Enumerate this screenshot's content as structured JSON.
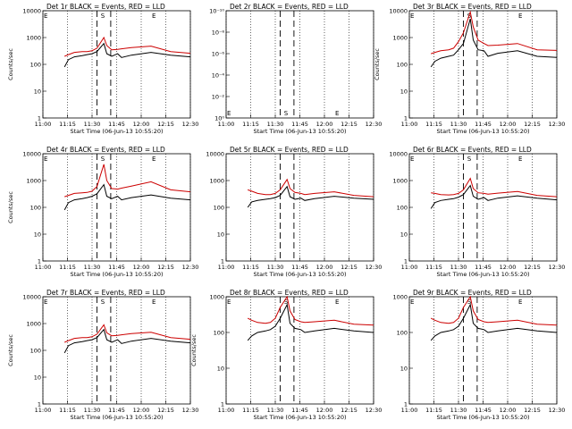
{
  "chart_data": [
    {
      "title": "Det 1r BLACK = Events, RED = LLD",
      "type": "line",
      "xlabel": "Start Time (06-Jun-13 10:55:20)",
      "ylabel": "Counts/sec",
      "ylim": [
        1,
        10000
      ],
      "yticks": [
        "1",
        "10",
        "100",
        "1000",
        "10000"
      ],
      "yscale": "log",
      "markers": [
        "E",
        "S",
        "E"
      ],
      "series": [
        {
          "name": "Events",
          "color": "#000000",
          "x": [
            11.22,
            11.26,
            11.32,
            11.4,
            11.45,
            11.5,
            11.55,
            11.62,
            11.65,
            11.7,
            11.76,
            11.8,
            11.9,
            12.1,
            12.3,
            12.5
          ],
          "y": [
            80,
            150,
            190,
            210,
            230,
            250,
            300,
            600,
            250,
            200,
            250,
            180,
            220,
            280,
            220,
            190
          ]
        },
        {
          "name": "LLD",
          "color": "#cc0000",
          "x": [
            11.22,
            11.26,
            11.32,
            11.4,
            11.45,
            11.5,
            11.55,
            11.62,
            11.65,
            11.7,
            11.76,
            11.8,
            11.9,
            12.1,
            12.3,
            12.5
          ],
          "y": [
            200,
            230,
            280,
            300,
            300,
            320,
            400,
            1000,
            500,
            350,
            360,
            380,
            420,
            480,
            300,
            260
          ]
        }
      ]
    },
    {
      "title": "Det 2r BLACK = Events, RED = LLD",
      "type": "line",
      "xlabel": "Start Time (06-Jun-13 10:55:20)",
      "ylabel": "",
      "ylim": [
        1,
        1e-10
      ],
      "yticks": [
        "10⁰",
        "10⁻²",
        "10⁻⁴",
        "10⁻⁶",
        "10⁻⁸",
        "10⁻¹⁰"
      ],
      "yscale": "log",
      "markers": [
        "E",
        "S",
        "E"
      ],
      "series": []
    },
    {
      "title": "Det 3r BLACK = Events, RED = LLD",
      "type": "line",
      "xlabel": "Start Time (06-Jun-13 10:55:20)",
      "ylabel": "Counts/sec",
      "ylim": [
        1,
        10000
      ],
      "yticks": [
        "1",
        "10",
        "100",
        "1000",
        "10000"
      ],
      "yscale": "log",
      "markers": [
        "E",
        "S",
        "E"
      ],
      "series": [
        {
          "name": "Events",
          "color": "#000000",
          "x": [
            11.22,
            11.26,
            11.32,
            11.4,
            11.45,
            11.5,
            11.55,
            11.62,
            11.65,
            11.7,
            11.76,
            11.8,
            11.9,
            12.1,
            12.3,
            12.5
          ],
          "y": [
            80,
            130,
            170,
            200,
            220,
            350,
            600,
            5000,
            800,
            350,
            320,
            200,
            260,
            320,
            200,
            180
          ]
        },
        {
          "name": "LLD",
          "color": "#cc0000",
          "x": [
            11.22,
            11.26,
            11.32,
            11.4,
            11.45,
            11.5,
            11.55,
            11.62,
            11.65,
            11.7,
            11.76,
            11.8,
            11.9,
            12.1,
            12.3,
            12.5
          ],
          "y": [
            250,
            280,
            320,
            350,
            400,
            700,
            1500,
            9000,
            2500,
            800,
            600,
            500,
            520,
            600,
            350,
            330
          ]
        }
      ]
    },
    {
      "title": "Det 4r BLACK = Events, RED = LLD",
      "type": "line",
      "xlabel": "Start Time (06-Jun-13 10:55:20)",
      "ylabel": "Counts/sec",
      "ylim": [
        1,
        10000
      ],
      "yticks": [
        "1",
        "10",
        "100",
        "1000",
        "10000"
      ],
      "yscale": "log",
      "markers": [
        "E",
        "S",
        "E"
      ],
      "series": [
        {
          "name": "Events",
          "color": "#000000",
          "x": [
            11.22,
            11.26,
            11.32,
            11.4,
            11.45,
            11.5,
            11.55,
            11.62,
            11.65,
            11.7,
            11.76,
            11.8,
            11.9,
            12.1,
            12.3,
            12.5
          ],
          "y": [
            80,
            150,
            190,
            210,
            230,
            260,
            320,
            700,
            260,
            210,
            260,
            190,
            230,
            290,
            220,
            190
          ]
        },
        {
          "name": "LLD",
          "color": "#cc0000",
          "x": [
            11.22,
            11.26,
            11.32,
            11.4,
            11.45,
            11.5,
            11.55,
            11.62,
            11.65,
            11.7,
            11.76,
            11.8,
            11.9,
            12.1,
            12.3,
            12.5
          ],
          "y": [
            250,
            280,
            330,
            350,
            360,
            400,
            600,
            4000,
            1000,
            500,
            480,
            520,
            620,
            900,
            450,
            380
          ]
        }
      ]
    },
    {
      "title": "Det 5r BLACK = Events, RED = LLD",
      "type": "line",
      "xlabel": "Start Time (06-Jun-13 10:55:20)",
      "ylabel": "",
      "ylim": [
        1,
        10000
      ],
      "yticks": [
        "1",
        "10",
        "100",
        "1000",
        "10000"
      ],
      "yscale": "log",
      "markers": [],
      "series": [
        {
          "name": "Events",
          "color": "#000000",
          "x": [
            11.22,
            11.26,
            11.32,
            11.4,
            11.45,
            11.5,
            11.55,
            11.62,
            11.65,
            11.7,
            11.76,
            11.8,
            11.9,
            12.1,
            12.3,
            12.5
          ],
          "y": [
            100,
            160,
            180,
            200,
            210,
            230,
            280,
            600,
            250,
            200,
            220,
            180,
            210,
            260,
            220,
            200
          ]
        },
        {
          "name": "LLD",
          "color": "#cc0000",
          "x": [
            11.22,
            11.26,
            11.32,
            11.4,
            11.45,
            11.5,
            11.55,
            11.62,
            11.65,
            11.7,
            11.76,
            11.8,
            11.9,
            12.1,
            12.3,
            12.5
          ],
          "y": [
            450,
            400,
            330,
            300,
            300,
            330,
            450,
            1100,
            500,
            360,
            330,
            300,
            330,
            380,
            280,
            250
          ]
        }
      ]
    },
    {
      "title": "Det 6r BLACK = Events, RED = LLD",
      "type": "line",
      "xlabel": "Start Time (06-Jun-13 10:55:20)",
      "ylabel": "",
      "ylim": [
        1,
        10000
      ],
      "yticks": [
        "1",
        "10",
        "100",
        "1000",
        "10000"
      ],
      "yscale": "log",
      "markers": [
        "E",
        "S",
        "E"
      ],
      "series": [
        {
          "name": "Events",
          "color": "#000000",
          "x": [
            11.22,
            11.26,
            11.32,
            11.4,
            11.45,
            11.5,
            11.55,
            11.62,
            11.65,
            11.7,
            11.76,
            11.8,
            11.9,
            12.1,
            12.3,
            12.5
          ],
          "y": [
            90,
            150,
            180,
            200,
            210,
            240,
            300,
            650,
            260,
            200,
            230,
            180,
            220,
            270,
            220,
            190
          ]
        },
        {
          "name": "LLD",
          "color": "#cc0000",
          "x": [
            11.22,
            11.26,
            11.32,
            11.4,
            11.45,
            11.5,
            11.55,
            11.62,
            11.65,
            11.7,
            11.76,
            11.8,
            11.9,
            12.1,
            12.3,
            12.5
          ],
          "y": [
            350,
            330,
            300,
            290,
            300,
            330,
            450,
            1200,
            500,
            350,
            330,
            310,
            340,
            390,
            280,
            250
          ]
        }
      ]
    },
    {
      "title": "Det 7r BLACK = Events, RED = LLD",
      "type": "line",
      "xlabel": "Start Time (06-Jun-13 10:55:20)",
      "ylabel": "Counts/sec",
      "ylim": [
        1,
        10000
      ],
      "yticks": [
        "1",
        "10",
        "100",
        "1000",
        "10000"
      ],
      "yscale": "log",
      "markers": [
        "E",
        "S",
        "E"
      ],
      "series": [
        {
          "name": "Events",
          "color": "#000000",
          "x": [
            11.22,
            11.26,
            11.32,
            11.4,
            11.45,
            11.5,
            11.55,
            11.62,
            11.65,
            11.7,
            11.76,
            11.8,
            11.9,
            12.1,
            12.3,
            12.5
          ],
          "y": [
            80,
            150,
            190,
            210,
            230,
            250,
            300,
            600,
            250,
            200,
            250,
            180,
            220,
            280,
            220,
            190
          ]
        },
        {
          "name": "LLD",
          "color": "#cc0000",
          "x": [
            11.22,
            11.26,
            11.32,
            11.4,
            11.45,
            11.5,
            11.55,
            11.62,
            11.65,
            11.7,
            11.76,
            11.8,
            11.9,
            12.1,
            12.3,
            12.5
          ],
          "y": [
            200,
            230,
            280,
            300,
            300,
            320,
            400,
            900,
            450,
            350,
            360,
            380,
            420,
            470,
            300,
            260
          ]
        }
      ]
    },
    {
      "title": "Det 8r BLACK = Events, RED = LLD",
      "type": "line",
      "xlabel": "Start Time (06-Jun-13 10:55:20)",
      "ylabel": "Counts/sec",
      "ylim": [
        1,
        1000
      ],
      "yticks": [
        "1",
        "10",
        "100",
        "1000"
      ],
      "yscale": "log",
      "markers": [
        "E",
        "S",
        "E"
      ],
      "series": [
        {
          "name": "Events",
          "color": "#000000",
          "x": [
            11.22,
            11.26,
            11.32,
            11.4,
            11.45,
            11.5,
            11.55,
            11.62,
            11.65,
            11.7,
            11.76,
            11.8,
            11.9,
            12.1,
            12.3,
            12.5
          ],
          "y": [
            60,
            80,
            100,
            110,
            120,
            150,
            250,
            600,
            180,
            130,
            120,
            100,
            110,
            130,
            110,
            100
          ]
        },
        {
          "name": "LLD",
          "color": "#cc0000",
          "x": [
            11.22,
            11.26,
            11.32,
            11.4,
            11.45,
            11.5,
            11.55,
            11.62,
            11.65,
            11.7,
            11.76,
            11.8,
            11.9,
            12.1,
            12.3,
            12.5
          ],
          "y": [
            250,
            220,
            190,
            180,
            190,
            250,
            500,
            1000,
            400,
            230,
            200,
            190,
            200,
            220,
            170,
            160
          ]
        }
      ]
    },
    {
      "title": "Det 9r BLACK = Events, RED = LLD",
      "type": "line",
      "xlabel": "Start Time (06-Jun-13 10:55:20)",
      "ylabel": "",
      "ylim": [
        1,
        1000
      ],
      "yticks": [
        "1",
        "10",
        "100",
        "1000"
      ],
      "yscale": "log",
      "markers": [
        "E",
        "S",
        "E"
      ],
      "series": [
        {
          "name": "Events",
          "color": "#000000",
          "x": [
            11.22,
            11.26,
            11.32,
            11.4,
            11.45,
            11.5,
            11.55,
            11.62,
            11.65,
            11.7,
            11.76,
            11.8,
            11.9,
            12.1,
            12.3,
            12.5
          ],
          "y": [
            60,
            80,
            100,
            110,
            120,
            150,
            250,
            600,
            180,
            130,
            120,
            100,
            110,
            130,
            110,
            100
          ]
        },
        {
          "name": "LLD",
          "color": "#cc0000",
          "x": [
            11.22,
            11.26,
            11.32,
            11.4,
            11.45,
            11.5,
            11.55,
            11.62,
            11.65,
            11.7,
            11.76,
            11.8,
            11.9,
            12.1,
            12.3,
            12.5
          ],
          "y": [
            250,
            220,
            190,
            180,
            190,
            250,
            500,
            1000,
            400,
            230,
            200,
            190,
            200,
            220,
            170,
            160
          ]
        }
      ]
    }
  ],
  "shared": {
    "xticks": [
      "11:00",
      "11:15",
      "11:30",
      "11:45",
      "12:00",
      "12:15",
      "12:30"
    ],
    "xtick_values": [
      11.0,
      11.25,
      11.5,
      11.75,
      12.0,
      12.25,
      12.5
    ],
    "xlim": [
      11.0,
      12.5
    ],
    "dotted_lines": [
      11.0,
      11.25,
      11.5,
      11.75,
      12.0,
      12.25,
      12.5
    ],
    "dashed_lines": [
      11.55,
      11.69
    ],
    "marker_positions": [
      11.0,
      11.58,
      12.1
    ]
  }
}
